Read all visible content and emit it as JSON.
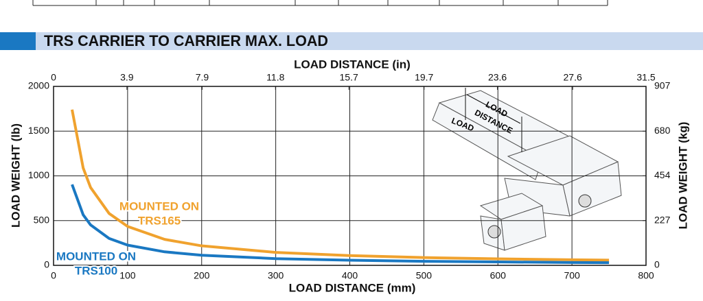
{
  "chart_data": {
    "type": "line",
    "title": "TRS CARRIER TO CARRIER MAX. LOAD",
    "x_label": "LOAD DISTANCE (mm)",
    "x2_label": "LOAD DISTANCE (in)",
    "y_label": "LOAD WEIGHT (lb)",
    "y2_label": "LOAD WEIGHT (kg)",
    "x": [
      25,
      40,
      50,
      75,
      100,
      150,
      200,
      300,
      400,
      500,
      600,
      700,
      750
    ],
    "xlim": [
      0,
      800
    ],
    "xticks": [
      0,
      100,
      200,
      300,
      400,
      500,
      600,
      700,
      800
    ],
    "x2lim": [
      0,
      31.5
    ],
    "x2ticks": [
      0,
      3.9,
      7.9,
      11.8,
      15.7,
      19.7,
      23.6,
      27.6,
      31.5
    ],
    "ylim": [
      0,
      2000
    ],
    "yticks": [
      0,
      500,
      1000,
      1500,
      2000
    ],
    "y2lim": [
      0,
      907
    ],
    "y2ticks": [
      0,
      227,
      454,
      680,
      907
    ],
    "grid": true,
    "series": [
      {
        "label_lines": [
          "MOUNTED ON",
          "TRS165"
        ],
        "color": "#f0a22e",
        "values": [
          1740,
          1088,
          870,
          580,
          435,
          290,
          218,
          145,
          109,
          87,
          73,
          62,
          58
        ]
      },
      {
        "label_lines": [
          "MOUNTED ON",
          "TRS100"
        ],
        "color": "#1a78c2",
        "values": [
          904,
          565,
          452,
          301,
          226,
          151,
          113,
          75,
          57,
          45,
          38,
          32,
          30
        ]
      }
    ],
    "annotations": [
      "LOAD",
      "LOAD",
      "DISTANCE"
    ]
  }
}
